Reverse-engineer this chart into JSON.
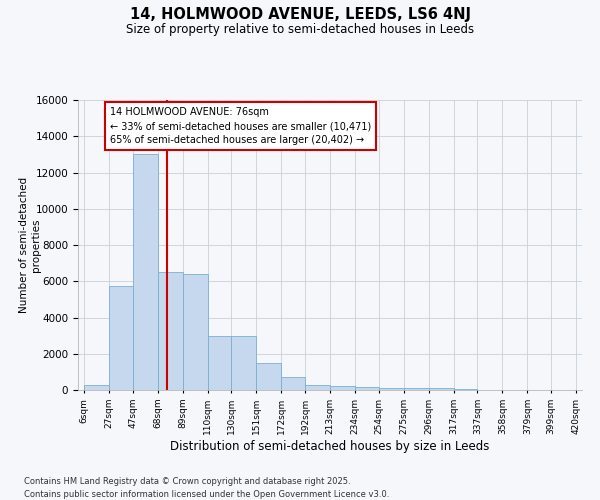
{
  "title1": "14, HOLMWOOD AVENUE, LEEDS, LS6 4NJ",
  "title2": "Size of property relative to semi-detached houses in Leeds",
  "xlabel": "Distribution of semi-detached houses by size in Leeds",
  "ylabel": "Number of semi-detached\nproperties",
  "property_size": 76,
  "property_label": "14 HOLMWOOD AVENUE: 76sqm",
  "pct_smaller": 33,
  "pct_larger": 65,
  "n_smaller": 10471,
  "n_larger": 20402,
  "bar_color": "#c5d8ee",
  "bar_edge_color": "#7aafd4",
  "vline_color": "#cc0000",
  "annotation_box_color": "#cc0000",
  "grid_color": "#c8d0dc",
  "background_color": "#f5f7fa",
  "bins": [
    6,
    27,
    47,
    68,
    89,
    110,
    130,
    151,
    172,
    192,
    213,
    234,
    254,
    275,
    296,
    317,
    337,
    358,
    379,
    399,
    420
  ],
  "bin_labels": [
    "6sqm",
    "27sqm",
    "47sqm",
    "68sqm",
    "89sqm",
    "110sqm",
    "130sqm",
    "151sqm",
    "172sqm",
    "192sqm",
    "213sqm",
    "234sqm",
    "254sqm",
    "275sqm",
    "296sqm",
    "317sqm",
    "337sqm",
    "358sqm",
    "379sqm",
    "399sqm",
    "420sqm"
  ],
  "counts": [
    250,
    5750,
    13000,
    6500,
    6400,
    3000,
    3000,
    1500,
    700,
    300,
    200,
    150,
    100,
    100,
    100,
    50,
    25,
    10,
    5,
    2
  ],
  "ylim": [
    0,
    16000
  ],
  "yticks": [
    0,
    2000,
    4000,
    6000,
    8000,
    10000,
    12000,
    14000,
    16000
  ],
  "footer1": "Contains HM Land Registry data © Crown copyright and database right 2025.",
  "footer2": "Contains public sector information licensed under the Open Government Licence v3.0."
}
